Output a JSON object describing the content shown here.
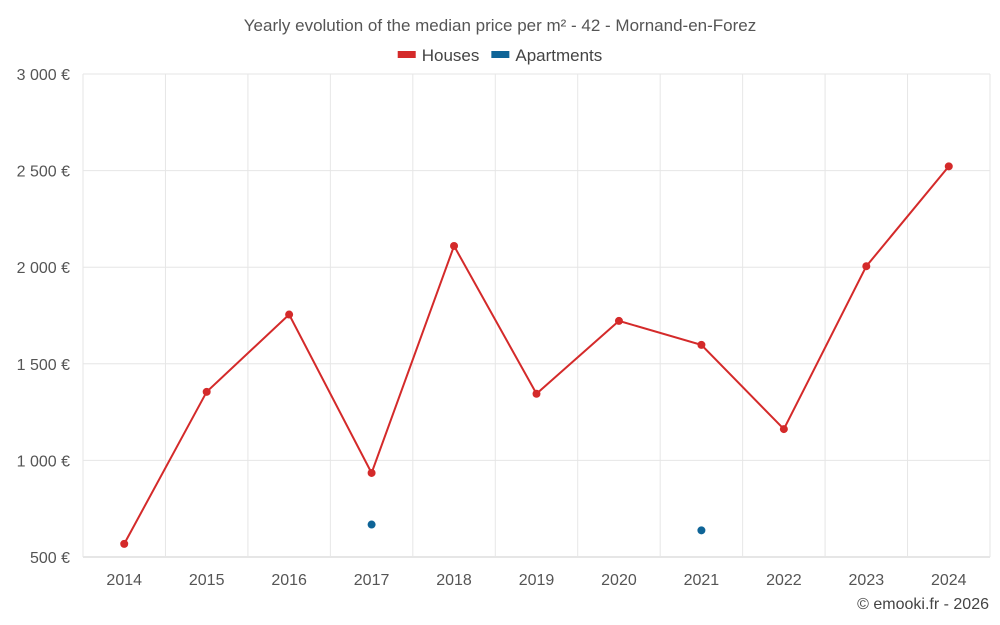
{
  "chart_data": {
    "type": "line",
    "title": "Yearly evolution of the median price per m² - 42 - Mornand-en-Forez",
    "categories": [
      "2014",
      "2015",
      "2016",
      "2017",
      "2018",
      "2019",
      "2020",
      "2021",
      "2022",
      "2023",
      "2024"
    ],
    "series": [
      {
        "name": "Houses",
        "color": "#d42a2a",
        "values": [
          568,
          1355,
          1755,
          935,
          2110,
          1345,
          1722,
          1598,
          1162,
          2005,
          2522
        ]
      },
      {
        "name": "Apartments",
        "color": "#0e6497",
        "values": [
          null,
          null,
          null,
          668,
          null,
          null,
          null,
          638,
          null,
          null,
          null
        ]
      }
    ],
    "yticks": [
      "500 €",
      "1 000 €",
      "1 500 €",
      "2 000 €",
      "2 500 €",
      "3 000 €"
    ],
    "ylim": [
      500,
      3000
    ],
    "xlabel": "",
    "ylabel": "",
    "grid": true,
    "legend_position": "top-center"
  },
  "credit": "© emooki.fr - 2026"
}
